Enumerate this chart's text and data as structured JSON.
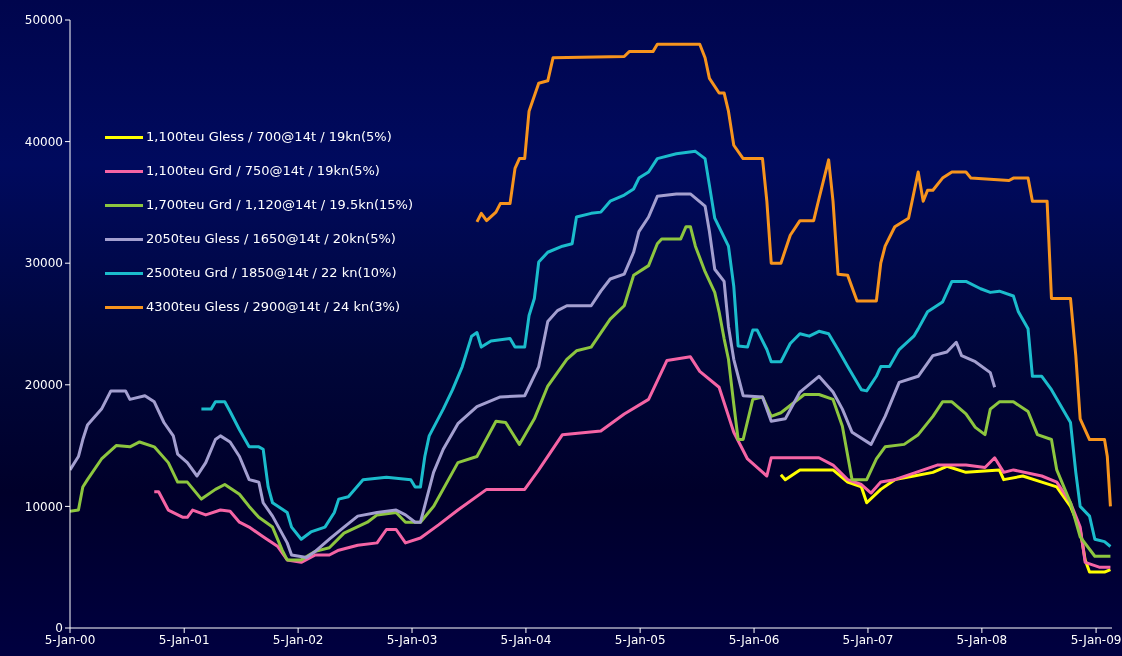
{
  "chart_data": {
    "type": "line",
    "xlim": [
      "2000-01-05",
      "2009-02-25"
    ],
    "xticks": [
      {
        "value": "2000-01-05",
        "label": "5-Jan-00"
      },
      {
        "value": "2001-01-05",
        "label": "5-Jan-01"
      },
      {
        "value": "2002-01-05",
        "label": "5-Jan-02"
      },
      {
        "value": "2003-01-05",
        "label": "5-Jan-03"
      },
      {
        "value": "2004-01-05",
        "label": "5-Jan-04"
      },
      {
        "value": "2005-01-05",
        "label": "5-Jan-05"
      },
      {
        "value": "2006-01-05",
        "label": "5-Jan-06"
      },
      {
        "value": "2007-01-05",
        "label": "5-Jan-07"
      },
      {
        "value": "2008-01-05",
        "label": "5-Jan-08"
      },
      {
        "value": "2009-01-05",
        "label": "5-Jan-09"
      }
    ],
    "ylim": [
      0,
      50000
    ],
    "yticks": [
      0,
      10000,
      20000,
      30000,
      40000,
      50000
    ],
    "grid": false,
    "legend": "top left",
    "series": [
      {
        "name": "1,100teu Gless / 700@14t / 19kn(5%)",
        "color": "#ffff00",
        "x": [
          "2006-04-01",
          "2006-04-15",
          "2006-06-01",
          "2006-09-15",
          "2006-11-01",
          "2006-12-15",
          "2007-01-01",
          "2007-02-15",
          "2007-04-01",
          "2007-06-01",
          "2007-08-01",
          "2007-09-15",
          "2007-11-15",
          "2008-03-01",
          "2008-03-15",
          "2008-05-15",
          "2008-07-15",
          "2008-09-01",
          "2008-10-15",
          "2008-11-15",
          "2008-12-01",
          "2008-12-15",
          "2009-02-01",
          "2009-02-20"
        ],
        "values": [
          12600,
          12200,
          13000,
          13000,
          12000,
          11600,
          10300,
          11400,
          12200,
          12500,
          12800,
          13300,
          12800,
          13000,
          12200,
          12500,
          12000,
          11600,
          10000,
          8100,
          5600,
          4600,
          4600,
          4800
        ]
      },
      {
        "name": "1,100teu Grd / 750@14t / 19kn(5%)",
        "color": "#f564a5",
        "x": [
          "2000-10-01",
          "2000-10-15",
          "2000-11-15",
          "2001-01-01",
          "2001-01-15",
          "2001-02-01",
          "2001-03-15",
          "2001-05-01",
          "2001-06-01",
          "2001-07-01",
          "2001-08-01",
          "2001-09-15",
          "2001-11-01",
          "2001-12-01",
          "2002-01-15",
          "2002-03-01",
          "2002-04-15",
          "2002-05-15",
          "2002-07-15",
          "2002-09-15",
          "2002-10-15",
          "2002-11-15",
          "2002-12-15",
          "2003-02-01",
          "2003-04-01",
          "2003-06-01",
          "2003-09-01",
          "2004-01-01",
          "2004-02-15",
          "2004-05-01",
          "2004-09-01",
          "2004-11-15",
          "2005-02-01",
          "2005-04-01",
          "2005-06-15",
          "2005-07-15",
          "2005-09-15",
          "2005-11-01",
          "2005-12-15",
          "2006-02-15",
          "2006-03-01",
          "2006-08-01",
          "2006-09-15",
          "2006-11-01",
          "2006-12-15",
          "2007-01-15",
          "2007-02-15",
          "2007-04-01",
          "2007-08-15",
          "2007-11-15",
          "2008-01-15",
          "2008-02-15",
          "2008-03-15",
          "2008-04-15",
          "2008-07-15",
          "2008-09-01",
          "2008-10-15",
          "2008-11-15",
          "2008-12-01",
          "2009-01-15",
          "2009-02-20"
        ],
        "values": [
          11200,
          11200,
          9700,
          9100,
          9100,
          9700,
          9300,
          9700,
          9600,
          8700,
          8300,
          7500,
          6700,
          5600,
          5400,
          6000,
          6000,
          6400,
          6800,
          7000,
          8100,
          8100,
          7000,
          7400,
          8500,
          9700,
          11400,
          11400,
          13000,
          15900,
          16200,
          17600,
          18800,
          22000,
          22300,
          21100,
          19800,
          16100,
          13900,
          12500,
          14000,
          14000,
          13400,
          12200,
          11800,
          11100,
          12000,
          12200,
          13400,
          13400,
          13200,
          14000,
          12800,
          13000,
          12500,
          12000,
          10300,
          8300,
          5400,
          5000,
          5000
        ]
      },
      {
        "name": "1,700teu Grd / 1,120@14t / 19.5kn(15%)",
        "color": "#8dc63f",
        "x": [
          "2000-01-05",
          "2000-02-01",
          "2000-02-15",
          "2000-03-01",
          "2000-04-15",
          "2000-06-01",
          "2000-07-15",
          "2000-08-15",
          "2000-10-01",
          "2000-11-15",
          "2000-12-15",
          "2001-01-15",
          "2001-03-01",
          "2001-04-15",
          "2001-05-15",
          "2001-07-01",
          "2001-08-01",
          "2001-09-01",
          "2001-10-15",
          "2001-11-15",
          "2001-12-01",
          "2002-01-15",
          "2002-03-01",
          "2002-04-15",
          "2002-06-01",
          "2002-08-15",
          "2002-09-15",
          "2002-11-15",
          "2002-12-15",
          "2003-02-01",
          "2003-03-15",
          "2003-06-01",
          "2003-08-01",
          "2003-10-01",
          "2003-11-01",
          "2003-12-15",
          "2004-02-01",
          "2004-03-15",
          "2004-05-15",
          "2004-06-15",
          "2004-08-01",
          "2004-10-01",
          "2004-11-15",
          "2004-12-15",
          "2005-02-01",
          "2005-03-01",
          "2005-03-15",
          "2005-05-15",
          "2005-06-01",
          "2005-06-15",
          "2005-07-01",
          "2005-08-01",
          "2005-09-01",
          "2005-09-15",
          "2005-10-01",
          "2005-10-15",
          "2005-11-01",
          "2005-11-15",
          "2005-12-01",
          "2006-01-01",
          "2006-02-01",
          "2006-03-01",
          "2006-04-01",
          "2006-06-15",
          "2006-08-01",
          "2006-09-15",
          "2006-10-15",
          "2006-11-15",
          "2007-01-01",
          "2007-02-01",
          "2007-03-01",
          "2007-05-01",
          "2007-06-15",
          "2007-08-01",
          "2007-09-01",
          "2007-10-01",
          "2007-11-15",
          "2007-12-15",
          "2008-01-15",
          "2008-02-01",
          "2008-03-01",
          "2008-04-15",
          "2008-06-01",
          "2008-07-01",
          "2008-08-15",
          "2008-09-01",
          "2008-10-15",
          "2008-11-15",
          "2009-01-01",
          "2009-02-20"
        ],
        "values": [
          9600,
          9700,
          11600,
          12200,
          13900,
          15000,
          14900,
          15300,
          14900,
          13600,
          12000,
          12000,
          10600,
          11400,
          11800,
          11000,
          10000,
          9100,
          8300,
          6400,
          5600,
          5600,
          6300,
          6600,
          7800,
          8700,
          9300,
          9500,
          8700,
          8700,
          10000,
          13600,
          14100,
          17000,
          16900,
          15100,
          17200,
          19900,
          22100,
          22800,
          23100,
          25400,
          26500,
          29000,
          29800,
          31600,
          32000,
          32000,
          33000,
          33000,
          31400,
          29300,
          27600,
          26000,
          23800,
          22100,
          18400,
          15500,
          15500,
          18800,
          19000,
          17400,
          17700,
          19200,
          19200,
          18800,
          16600,
          12200,
          12200,
          13900,
          14900,
          15100,
          15900,
          17400,
          18600,
          18600,
          17600,
          16500,
          15900,
          18000,
          18600,
          18600,
          17800,
          15900,
          15500,
          13000,
          10300,
          7500,
          5900,
          5900
        ]
      },
      {
        "name": "2050teu Gless / 1650@14t / 20kn(5%)",
        "color": "#a39fd0",
        "x": [
          "2000-01-05",
          "2000-02-01",
          "2000-02-15",
          "2000-03-01",
          "2000-04-15",
          "2000-05-15",
          "2000-07-01",
          "2000-07-15",
          "2000-09-01",
          "2000-10-01",
          "2000-11-01",
          "2000-12-01",
          "2000-12-15",
          "2001-01-15",
          "2001-02-15",
          "2001-03-15",
          "2001-04-15",
          "2001-05-01",
          "2001-06-01",
          "2001-07-01",
          "2001-08-01",
          "2001-09-01",
          "2001-09-15",
          "2001-10-15",
          "2001-12-01",
          "2001-12-15",
          "2002-02-01",
          "2002-03-01",
          "2002-04-15",
          "2002-06-01",
          "2002-07-15",
          "2002-09-15",
          "2002-11-15",
          "2002-12-15",
          "2003-01-15",
          "2003-02-01",
          "2003-03-15",
          "2003-04-15",
          "2003-06-01",
          "2003-08-01",
          "2003-10-15",
          "2004-01-01",
          "2004-02-15",
          "2004-03-15",
          "2004-04-15",
          "2004-05-15",
          "2004-08-01",
          "2004-09-01",
          "2004-10-01",
          "2004-11-15",
          "2004-12-15",
          "2005-01-01",
          "2005-02-01",
          "2005-03-01",
          "2005-05-01",
          "2005-06-15",
          "2005-08-01",
          "2005-08-15",
          "2005-09-01",
          "2005-10-01",
          "2005-10-15",
          "2005-11-01",
          "2005-12-01",
          "2006-02-01",
          "2006-03-01",
          "2006-04-15",
          "2006-06-01",
          "2006-08-01",
          "2006-09-15",
          "2006-10-15",
          "2006-11-15",
          "2007-01-15",
          "2007-03-01",
          "2007-04-15",
          "2007-06-15",
          "2007-08-01",
          "2007-09-15",
          "2007-10-15",
          "2007-11-01",
          "2007-12-15",
          "2008-02-01",
          "2008-02-15"
        ],
        "values": [
          13000,
          14100,
          15500,
          16700,
          18000,
          19500,
          19500,
          18800,
          19100,
          18600,
          16900,
          15800,
          14300,
          13600,
          12500,
          13600,
          15500,
          15800,
          15300,
          14100,
          12200,
          12000,
          10300,
          9200,
          7000,
          6000,
          5800,
          6300,
          7300,
          8300,
          9200,
          9500,
          9700,
          9300,
          8700,
          8700,
          12800,
          14700,
          16800,
          18200,
          19000,
          19100,
          21500,
          25200,
          26100,
          26500,
          26500,
          27700,
          28700,
          29100,
          30900,
          32600,
          33800,
          35500,
          35700,
          35700,
          34700,
          32600,
          29500,
          28500,
          24800,
          22100,
          19100,
          19000,
          17000,
          17200,
          19400,
          20700,
          19400,
          18000,
          16100,
          15100,
          17400,
          20200,
          20700,
          22400,
          22700,
          23500,
          22400,
          21900,
          21000,
          19800
        ]
      },
      {
        "name": "2500teu Grd / 1850@14t / 22 kn(10%)",
        "color": "#1bbccc",
        "x": [
          "2001-03-01",
          "2001-04-01",
          "2001-04-15",
          "2001-05-15",
          "2001-06-01",
          "2001-07-01",
          "2001-08-01",
          "2001-09-01",
          "2001-09-15",
          "2001-10-01",
          "2001-10-15",
          "2001-12-01",
          "2001-12-15",
          "2002-01-15",
          "2002-02-15",
          "2002-04-01",
          "2002-05-01",
          "2002-05-15",
          "2002-06-15",
          "2002-08-01",
          "2002-10-15",
          "2003-01-01",
          "2003-01-15",
          "2003-02-01",
          "2003-02-15",
          "2003-03-01",
          "2003-04-15",
          "2003-05-15",
          "2003-06-15",
          "2003-07-15",
          "2003-08-01",
          "2003-08-15",
          "2003-09-15",
          "2003-11-15",
          "2003-12-01",
          "2004-01-01",
          "2004-01-15",
          "2004-02-01",
          "2004-02-15",
          "2004-03-15",
          "2004-05-01",
          "2004-06-01",
          "2004-06-15",
          "2004-08-01",
          "2004-09-01",
          "2004-10-01",
          "2004-11-15",
          "2004-12-15",
          "2005-01-01",
          "2005-02-01",
          "2005-03-01",
          "2005-05-01",
          "2005-07-01",
          "2005-08-01",
          "2005-08-15",
          "2005-09-01",
          "2005-10-15",
          "2005-11-01",
          "2005-11-15",
          "2005-12-15",
          "2006-01-01",
          "2006-01-15",
          "2006-02-15",
          "2006-03-01",
          "2006-04-01",
          "2006-05-01",
          "2006-06-01",
          "2006-07-01",
          "2006-08-01",
          "2006-09-01",
          "2006-10-01",
          "2006-11-01",
          "2006-12-15",
          "2007-01-01",
          "2007-02-01",
          "2007-02-15",
          "2007-03-15",
          "2007-04-15",
          "2007-06-01",
          "2007-06-15",
          "2007-07-15",
          "2007-09-01",
          "2007-10-01",
          "2007-11-15",
          "2008-01-01",
          "2008-02-01",
          "2008-03-01",
          "2008-04-15",
          "2008-05-01",
          "2008-06-01",
          "2008-06-15",
          "2008-07-15",
          "2008-08-15",
          "2008-10-15",
          "2008-11-01",
          "2008-11-15",
          "2008-12-15",
          "2009-01-01",
          "2009-02-01",
          "2009-02-20"
        ],
        "values": [
          18000,
          18000,
          18600,
          18600,
          17800,
          16300,
          14900,
          14900,
          14700,
          11600,
          10300,
          9500,
          8300,
          7300,
          7900,
          8300,
          9500,
          10600,
          10800,
          12200,
          12400,
          12200,
          11600,
          11600,
          14100,
          15800,
          18000,
          19600,
          21500,
          24000,
          24300,
          23100,
          23600,
          23800,
          23100,
          23100,
          25700,
          27100,
          30100,
          30900,
          31400,
          31600,
          33800,
          34100,
          34200,
          35100,
          35600,
          36100,
          37000,
          37500,
          38600,
          39000,
          39200,
          38600,
          36400,
          33700,
          31400,
          28100,
          23200,
          23100,
          24500,
          24500,
          22900,
          21900,
          21900,
          23400,
          24200,
          24000,
          24400,
          24200,
          22900,
          21500,
          19600,
          19500,
          20700,
          21500,
          21500,
          22900,
          24000,
          24600,
          26000,
          26800,
          28500,
          28500,
          27900,
          27600,
          27700,
          27300,
          26000,
          24600,
          20700,
          20700,
          19600,
          16900,
          12800,
          10000,
          9200,
          7300,
          7100,
          6700
        ]
      },
      {
        "name": "4300teu Gless / 2900@14t / 24 kn(3%)",
        "color": "#f7941d",
        "x": [
          "2003-08-01",
          "2003-08-15",
          "2003-09-01",
          "2003-10-01",
          "2003-10-15",
          "2003-11-15",
          "2003-12-01",
          "2003-12-15",
          "2004-01-01",
          "2004-01-15",
          "2004-02-15",
          "2004-03-15",
          "2004-04-01",
          "2004-11-15",
          "2004-12-01",
          "2005-02-15",
          "2005-03-01",
          "2005-07-15",
          "2005-08-01",
          "2005-08-15",
          "2005-09-15",
          "2005-10-01",
          "2005-10-15",
          "2005-11-01",
          "2005-12-01",
          "2006-02-01",
          "2006-02-15",
          "2006-03-01",
          "2006-04-01",
          "2006-05-01",
          "2006-06-01",
          "2006-07-15",
          "2006-08-01",
          "2006-09-01",
          "2006-09-15",
          "2006-10-01",
          "2006-11-01",
          "2006-12-01",
          "2007-02-01",
          "2007-02-15",
          "2007-03-01",
          "2007-04-01",
          "2007-05-15",
          "2007-06-15",
          "2007-07-01",
          "2007-07-15",
          "2007-08-01",
          "2007-09-01",
          "2007-10-01",
          "2007-11-15",
          "2007-12-01",
          "2008-04-01",
          "2008-04-15",
          "2008-06-01",
          "2008-06-15",
          "2008-08-01",
          "2008-08-15",
          "2008-10-15",
          "2008-11-01",
          "2008-11-15",
          "2008-12-15",
          "2009-02-01",
          "2009-02-10",
          "2009-02-20"
        ],
        "values": [
          33400,
          34100,
          33500,
          34200,
          34900,
          34900,
          37800,
          38600,
          38600,
          42500,
          44800,
          45000,
          46900,
          47000,
          47400,
          47400,
          48000,
          48000,
          46900,
          45200,
          44000,
          44000,
          42500,
          39700,
          38600,
          38600,
          35100,
          30000,
          30000,
          32300,
          33500,
          33500,
          35300,
          38500,
          35100,
          29100,
          29000,
          26900,
          26900,
          30000,
          31400,
          33000,
          33700,
          37500,
          35100,
          36000,
          36000,
          37000,
          37500,
          37500,
          37000,
          36800,
          37000,
          37000,
          35100,
          35100,
          27100,
          27100,
          22400,
          17200,
          15500,
          15500,
          14100,
          10000
        ]
      }
    ]
  }
}
